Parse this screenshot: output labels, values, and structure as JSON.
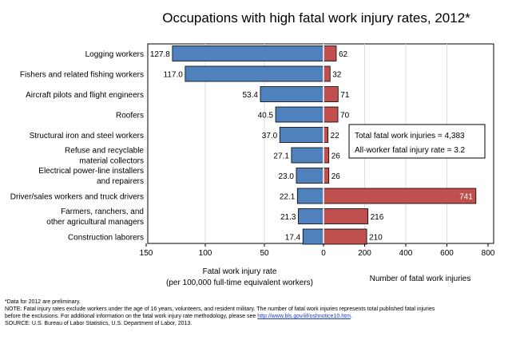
{
  "chart_data": {
    "type": "bar",
    "title": "Occupations with high fatal work injury rates, 2012*",
    "categories": [
      [
        "Logging workers"
      ],
      [
        "Fishers and related fishing workers"
      ],
      [
        "Aircraft pilots and flight engineers"
      ],
      [
        "Roofers"
      ],
      [
        "Structural iron and steel workers"
      ],
      [
        "Refuse and recyclable",
        "material collectors"
      ],
      [
        "Electrical power-line installers",
        "and repairers"
      ],
      [
        "Driver/sales workers and truck drivers"
      ],
      [
        "Farmers, ranchers, and",
        "other agricultural managers"
      ],
      [
        "Construction laborers"
      ]
    ],
    "series": [
      {
        "name": "Fatal work injury rate",
        "values": [
          127.8,
          117.0,
          53.4,
          40.5,
          37.0,
          27.1,
          23.0,
          22.1,
          21.3,
          17.4
        ],
        "labels": [
          "127.8",
          "117.0",
          "53.4",
          "40.5",
          "37.0",
          "27.1",
          "23.0",
          "22.1",
          "21.3",
          "17.4"
        ],
        "color": "#4f81bd"
      },
      {
        "name": "Number of fatal work injuries",
        "values": [
          62,
          32,
          71,
          70,
          22,
          26,
          26,
          741,
          216,
          210
        ],
        "labels": [
          "62",
          "32",
          "71",
          "70",
          "22",
          "26",
          "26",
          "741",
          "216",
          "210"
        ],
        "color": "#c0504d"
      }
    ],
    "left_axis": {
      "label_lines": [
        "Fatal work injury rate",
        "(per 100,000 full-time equivalent workers)"
      ],
      "range": [
        150,
        0
      ],
      "ticks": [
        150,
        100,
        50,
        0
      ],
      "reversed": true
    },
    "right_axis": {
      "label": "Number of fatal work injuries",
      "range": [
        0,
        800
      ],
      "ticks": [
        0,
        200,
        400,
        600,
        800
      ]
    },
    "annotation_lines": [
      "Total fatal work injuries = 4,383",
      "All-worker fatal injury rate = 3.2"
    ],
    "grid": true
  },
  "footnotes": {
    "preliminary": "*Data for 2012 are preliminary.",
    "note_line1": "NOTE: Fatal injury rates exclude workers under the age of 16 years, volunteers, and resident military. The number of fatal work injuries represents total published fatal injuries",
    "note_line2_prefix": "before the exclusions. For additional information on the fatal work injury rate methodology, please see ",
    "note_link": "http://www.bls.gov/iif/oshnotice10.htm",
    "note_line2_suffix": ".",
    "source": "SOURCE: U.S. Bureau of Labor Statistics, U.S. Department of Labor, 2013."
  }
}
